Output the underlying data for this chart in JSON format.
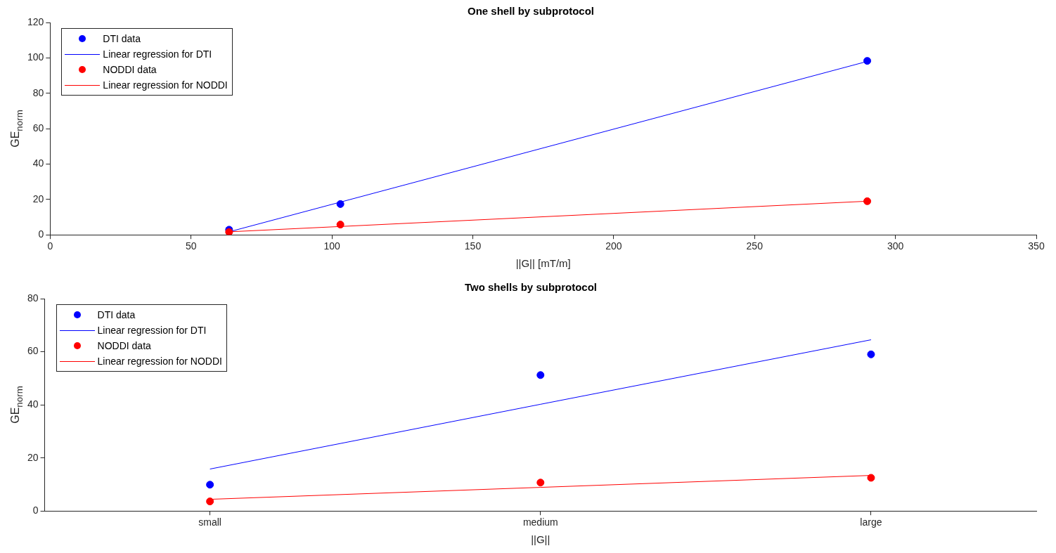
{
  "chart_data": [
    {
      "type": "scatter",
      "title": "One shell by subprotocol",
      "xlabel": "||G|| [mT/m]",
      "ylabel": "GE$_{norm}$",
      "xlim": [
        0,
        350
      ],
      "xticks": [
        0,
        50,
        100,
        150,
        200,
        250,
        300,
        350
      ],
      "ylim": [
        0,
        120
      ],
      "yticks": [
        0,
        20,
        40,
        60,
        80,
        100,
        120
      ],
      "legend": "top left",
      "series": [
        {
          "name": "DTI data",
          "color": "#0000ff",
          "marker": "circle",
          "x": [
            63.5,
            103,
            290
          ],
          "values": [
            2.9,
            17.4,
            98.3
          ]
        },
        {
          "name": "Linear regression for DTI",
          "type": "line",
          "marker": "none",
          "color": "#0000ff",
          "x": [
            63.5,
            290
          ],
          "values": [
            1.7,
            98.0
          ]
        },
        {
          "name": "NODDI data",
          "color": "#ff0000",
          "marker": "circle",
          "x": [
            63.5,
            103,
            290
          ],
          "values": [
            1.6,
            5.8,
            19.0
          ]
        },
        {
          "name": "Linear regression for NODDI",
          "type": "line",
          "marker": "none",
          "color": "#ff0000",
          "x": [
            63.5,
            290
          ],
          "values": [
            1.7,
            19.0
          ]
        }
      ]
    },
    {
      "type": "scatter",
      "title": "Two shells by subprotocol",
      "xlabel": "||G||",
      "ylabel": "GE$_{norm}$",
      "categories": [
        "small",
        "medium",
        "large"
      ],
      "ylim": [
        0,
        80
      ],
      "yticks": [
        0,
        20,
        40,
        60,
        80
      ],
      "legend": "top left",
      "series": [
        {
          "name": "DTI data",
          "color": "#0000ff",
          "marker": "circle",
          "values": [
            9.9,
            51.2,
            59.0
          ]
        },
        {
          "name": "Linear regression for DTI",
          "type": "line",
          "marker": "none",
          "color": "#0000ff",
          "values": [
            15.8,
            40.2,
            64.5
          ]
        },
        {
          "name": "NODDI data",
          "color": "#ff0000",
          "marker": "circle",
          "values": [
            3.6,
            10.7,
            12.5
          ]
        },
        {
          "name": "Linear regression for NODDI",
          "type": "line",
          "marker": "none",
          "color": "#ff0000",
          "values": [
            4.4,
            8.9,
            13.4
          ]
        }
      ]
    }
  ]
}
